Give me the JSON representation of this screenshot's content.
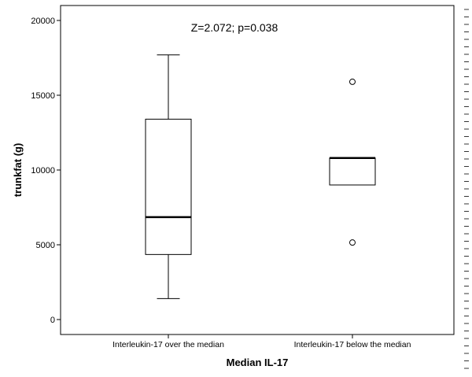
{
  "chart_data": {
    "type": "box",
    "annotation": "Z=2.072; p=0.038",
    "xlabel": "Median  IL-17",
    "ylabel": "trunkfat (g)",
    "ylim": [
      -1000,
      21000
    ],
    "yticks": [
      0,
      5000,
      10000,
      15000,
      20000
    ],
    "ytick_labels": [
      "0",
      "5000",
      "10000",
      "15000",
      "20000"
    ],
    "grid": false,
    "categories": [
      "Interleukin-17 over the median",
      "Interleukin-17 below  the median"
    ],
    "boxes": [
      {
        "whisker_low": 1400,
        "q1": 4350,
        "median": 6850,
        "q3": 13400,
        "whisker_high": 17700,
        "outliers": []
      },
      {
        "whisker_low": null,
        "q1": 9000,
        "median": 10800,
        "q3": 10800,
        "whisker_high": null,
        "outliers": [
          15900,
          5150
        ]
      }
    ]
  }
}
